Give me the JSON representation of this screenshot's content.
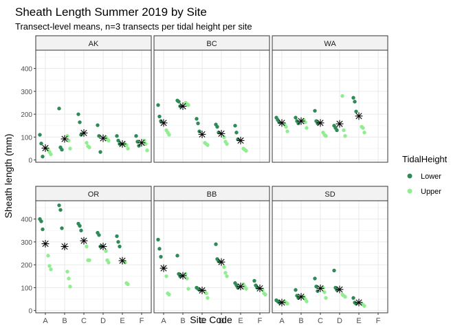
{
  "chart_data": {
    "type": "scatter",
    "title": "Sheath Length Summer 2019 by Site",
    "subtitle": "Transect-level means, n=3 transects per tidal height per site",
    "xlabel": "Site Code",
    "ylabel": "Sheath length (mm)",
    "categories": [
      "A",
      "B",
      "C",
      "D",
      "E",
      "F"
    ],
    "yticks": [
      0,
      100,
      200,
      300,
      400
    ],
    "ylim": [
      -10,
      480
    ],
    "grid": true,
    "legend": {
      "title": "TidalHeight",
      "position": "right",
      "entries": [
        {
          "label": "Lower",
          "color": "#2e8b57"
        },
        {
          "label": "Upper",
          "color": "#90ee90"
        }
      ]
    },
    "mean_marker_color": "#000000",
    "panels": [
      {
        "site": "AK",
        "lower": {
          "A": [
            110,
            72,
            15
          ],
          "B": [
            225,
            55,
            45
          ],
          "C": [
            200,
            165,
            110
          ],
          "D": [
            152,
            105,
            35
          ],
          "E": [
            105,
            85,
            70
          ],
          "F": [
            105,
            80,
            62
          ]
        },
        "upper": {
          "A": [
            45,
            35,
            25
          ],
          "B": [
            105,
            85,
            50
          ],
          "C": [
            75,
            60,
            55
          ],
          "D": [
            100,
            90,
            85
          ],
          "E": [
            70,
            65,
            50
          ],
          "F": [
            85,
            70,
            42
          ]
        },
        "mean": {
          "A": 52,
          "B": 92,
          "C": 118,
          "D": 95,
          "E": 70,
          "F": 75
        }
      },
      {
        "site": "BC",
        "lower": {
          "A": [
            240,
            190,
            170
          ],
          "B": [
            260,
            255,
            235
          ],
          "C": [
            180,
            160,
            125
          ],
          "D": [
            155,
            145,
            120
          ],
          "E": [
            150,
            120,
            90
          ]
        },
        "upper": {
          "A": [
            130,
            120,
            110
          ],
          "B": [
            250,
            245,
            240
          ],
          "C": [
            75,
            70,
            65
          ],
          "D": [
            100,
            80,
            70
          ],
          "E": [
            50,
            45,
            40
          ]
        },
        "mean": {
          "A": 162,
          "B": 235,
          "C": 112,
          "D": 115,
          "E": 85
        }
      },
      {
        "site": "WA",
        "lower": {
          "A": [
            185,
            175,
            165
          ],
          "B": [
            185,
            170,
            160
          ],
          "C": [
            215,
            170,
            160
          ],
          "D": [
            150,
            140,
            130
          ],
          "E": [
            272,
            255,
            212
          ]
        },
        "upper": {
          "A": [
            155,
            145,
            125
          ],
          "B": [
            175,
            165,
            140
          ],
          "C": [
            120,
            110,
            105
          ],
          "D": [
            280,
            130,
            105
          ],
          "E": [
            145,
            140,
            120
          ]
        },
        "mean": {
          "A": 162,
          "B": 170,
          "C": 162,
          "D": 158,
          "E": 192
        }
      },
      {
        "site": "OR",
        "lower": {
          "A": [
            400,
            390,
            355
          ],
          "B": [
            460,
            440,
            360
          ],
          "C": [
            380,
            370,
            350
          ],
          "D": [
            340,
            330,
            280
          ],
          "E": [
            325,
            300,
            280
          ]
        },
        "upper": {
          "A": [
            240,
            195,
            180
          ],
          "B": [
            170,
            140,
            105
          ],
          "C": [
            280,
            220,
            220
          ],
          "D": [
            260,
            220,
            210
          ],
          "E": [
            210,
            120,
            115
          ]
        },
        "mean": {
          "A": 292,
          "B": 280,
          "C": 305,
          "D": 280,
          "E": 218
        }
      },
      {
        "site": "BB",
        "lower": {
          "A": [
            310,
            270,
            235
          ],
          "B": [
            240,
            160,
            150
          ],
          "C": [
            100,
            95,
            90
          ],
          "D": [
            290,
            225,
            215
          ],
          "E": [
            120,
            110,
            100
          ],
          "F": [
            130,
            110,
            100
          ]
        },
        "upper": {
          "A": [
            150,
            75,
            70
          ],
          "B": [
            160,
            140,
            95
          ],
          "C": [
            85,
            75,
            55
          ],
          "D": [
            190,
            165,
            150
          ],
          "E": [
            115,
            105,
            95
          ],
          "F": [
            90,
            75,
            70
          ]
        },
        "mean": {
          "A": 185,
          "B": 152,
          "C": 88,
          "D": 212,
          "E": 105,
          "F": 97
        }
      },
      {
        "site": "SD",
        "lower": {
          "A": [
            45,
            40,
            35
          ],
          "B": [
            90,
            65,
            55
          ],
          "C": [
            140,
            105,
            85
          ],
          "D": [
            175,
            100,
            90
          ],
          "E": [
            55,
            35,
            30
          ]
        },
        "upper": {
          "A": [
            40,
            35,
            30
          ],
          "B": [
            60,
            50,
            40
          ],
          "C": [
            100,
            80,
            55
          ],
          "D": [
            70,
            65,
            60
          ],
          "E": [
            30,
            25,
            20
          ]
        },
        "mean": {
          "A": 35,
          "B": 60,
          "C": 97,
          "D": 92,
          "E": 35
        }
      }
    ]
  }
}
